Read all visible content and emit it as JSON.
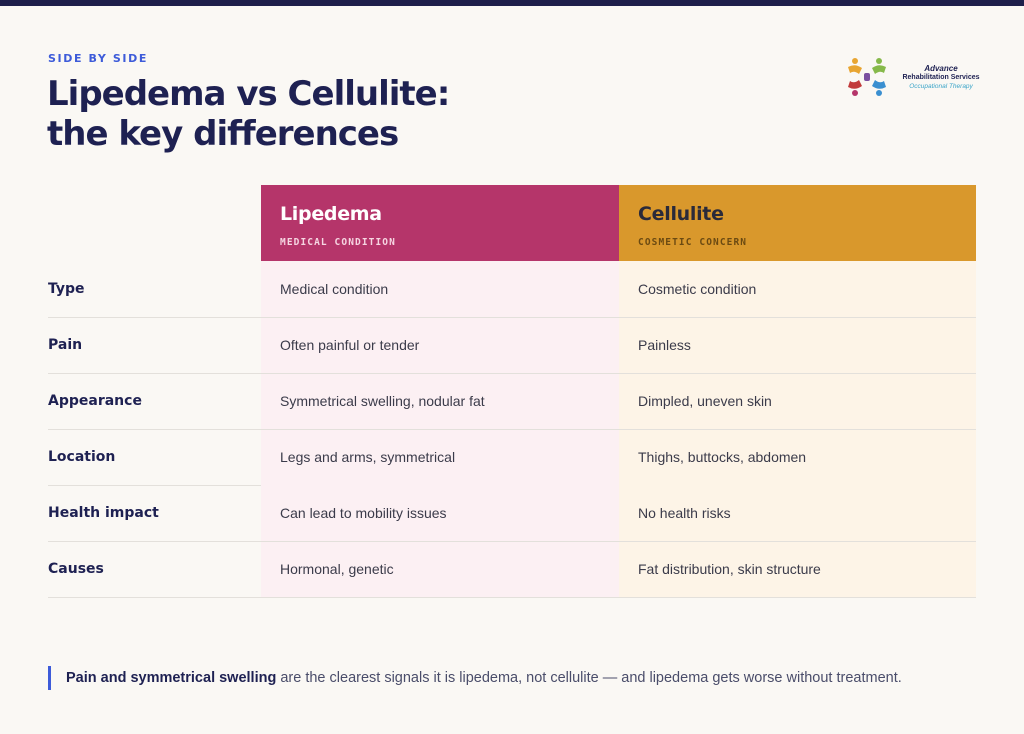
{
  "eyebrow": "SIDE BY SIDE",
  "title": {
    "line1": "Lipedema vs Cellulite:",
    "line2": "the key differences"
  },
  "logo": {
    "line1": "Advance",
    "line2": "Rehabilitation Services",
    "line3": "Occupational Therapy"
  },
  "columns": {
    "lipedema": {
      "name": "Lipedema",
      "sub": "MEDICAL CONDITION",
      "color": "#b5356a"
    },
    "cellulite": {
      "name": "Cellulite",
      "sub": "COSMETIC CONCERN",
      "color": "#d9982c"
    }
  },
  "rows": [
    {
      "label": "Type",
      "lipedema": "Medical condition",
      "cellulite": "Cosmetic condition"
    },
    {
      "label": "Pain",
      "lipedema": "Often painful or tender",
      "cellulite": "Painless"
    },
    {
      "label": "Appearance",
      "lipedema": "Symmetrical swelling, nodular fat",
      "cellulite": "Dimpled, uneven skin"
    },
    {
      "label": "Location",
      "lipedema": "Legs and arms, symmetrical",
      "cellulite": "Thighs, buttocks, abdomen"
    },
    {
      "label": "Health impact",
      "lipedema": "Can lead to mobility issues",
      "cellulite": "No health risks"
    },
    {
      "label": "Causes",
      "lipedema": "Hormonal, genetic",
      "cellulite": "Fat distribution, skin structure"
    }
  ],
  "note": {
    "bold": "Pain and symmetrical swelling",
    "rest": " are the clearest signals it is lipedema, not cellulite — and lipedema gets worse without treatment."
  },
  "colors": {
    "accent": "#3d5bd9",
    "navy": "#1e2152"
  }
}
